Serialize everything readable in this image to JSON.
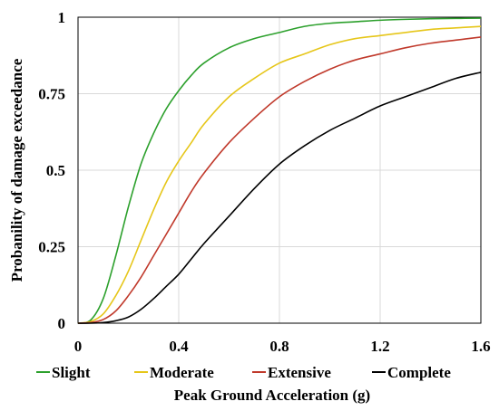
{
  "chart_data": {
    "type": "line",
    "title": "",
    "xlabel": "Peak Ground Acceleration (g)",
    "ylabel": "Probanility of damage exceedance",
    "xlim": [
      0,
      1.6
    ],
    "ylim": [
      0,
      1
    ],
    "x_ticks": [
      "0",
      "0.4",
      "0.8",
      "1.2",
      "1.6"
    ],
    "x_tick_values": [
      0,
      0.4,
      0.8,
      1.2,
      1.6
    ],
    "y_ticks": [
      "0",
      "0.25",
      "0.5",
      "0.75",
      "1"
    ],
    "y_tick_values": [
      0,
      0.25,
      0.5,
      0.75,
      1
    ],
    "grid": true,
    "legend_position": "bottom",
    "x": [
      0.0,
      0.05,
      0.1,
      0.15,
      0.2,
      0.25,
      0.3,
      0.35,
      0.4,
      0.45,
      0.5,
      0.6,
      0.7,
      0.8,
      0.9,
      1.0,
      1.1,
      1.2,
      1.3,
      1.4,
      1.5,
      1.6
    ],
    "series": [
      {
        "name": "Slight",
        "color": "#2ca02c",
        "values": [
          0.0,
          0.01,
          0.08,
          0.22,
          0.38,
          0.52,
          0.62,
          0.7,
          0.76,
          0.81,
          0.85,
          0.9,
          0.93,
          0.95,
          0.97,
          0.98,
          0.985,
          0.99,
          0.993,
          0.995,
          0.996,
          0.997
        ]
      },
      {
        "name": "Moderate",
        "color": "#e6c619",
        "values": [
          0.0,
          0.005,
          0.03,
          0.09,
          0.17,
          0.27,
          0.37,
          0.46,
          0.53,
          0.59,
          0.65,
          0.74,
          0.8,
          0.85,
          0.88,
          0.91,
          0.93,
          0.94,
          0.95,
          0.96,
          0.965,
          0.97
        ]
      },
      {
        "name": "Extensive",
        "color": "#c0392b",
        "values": [
          0.0,
          0.002,
          0.012,
          0.04,
          0.09,
          0.15,
          0.22,
          0.29,
          0.36,
          0.43,
          0.49,
          0.59,
          0.67,
          0.74,
          0.79,
          0.83,
          0.86,
          0.88,
          0.9,
          0.915,
          0.925,
          0.935
        ]
      },
      {
        "name": "Complete",
        "color": "#000000",
        "values": [
          0.0,
          0.0,
          0.002,
          0.008,
          0.02,
          0.045,
          0.08,
          0.12,
          0.16,
          0.21,
          0.26,
          0.35,
          0.44,
          0.52,
          0.58,
          0.63,
          0.67,
          0.71,
          0.74,
          0.77,
          0.8,
          0.82
        ]
      }
    ]
  }
}
